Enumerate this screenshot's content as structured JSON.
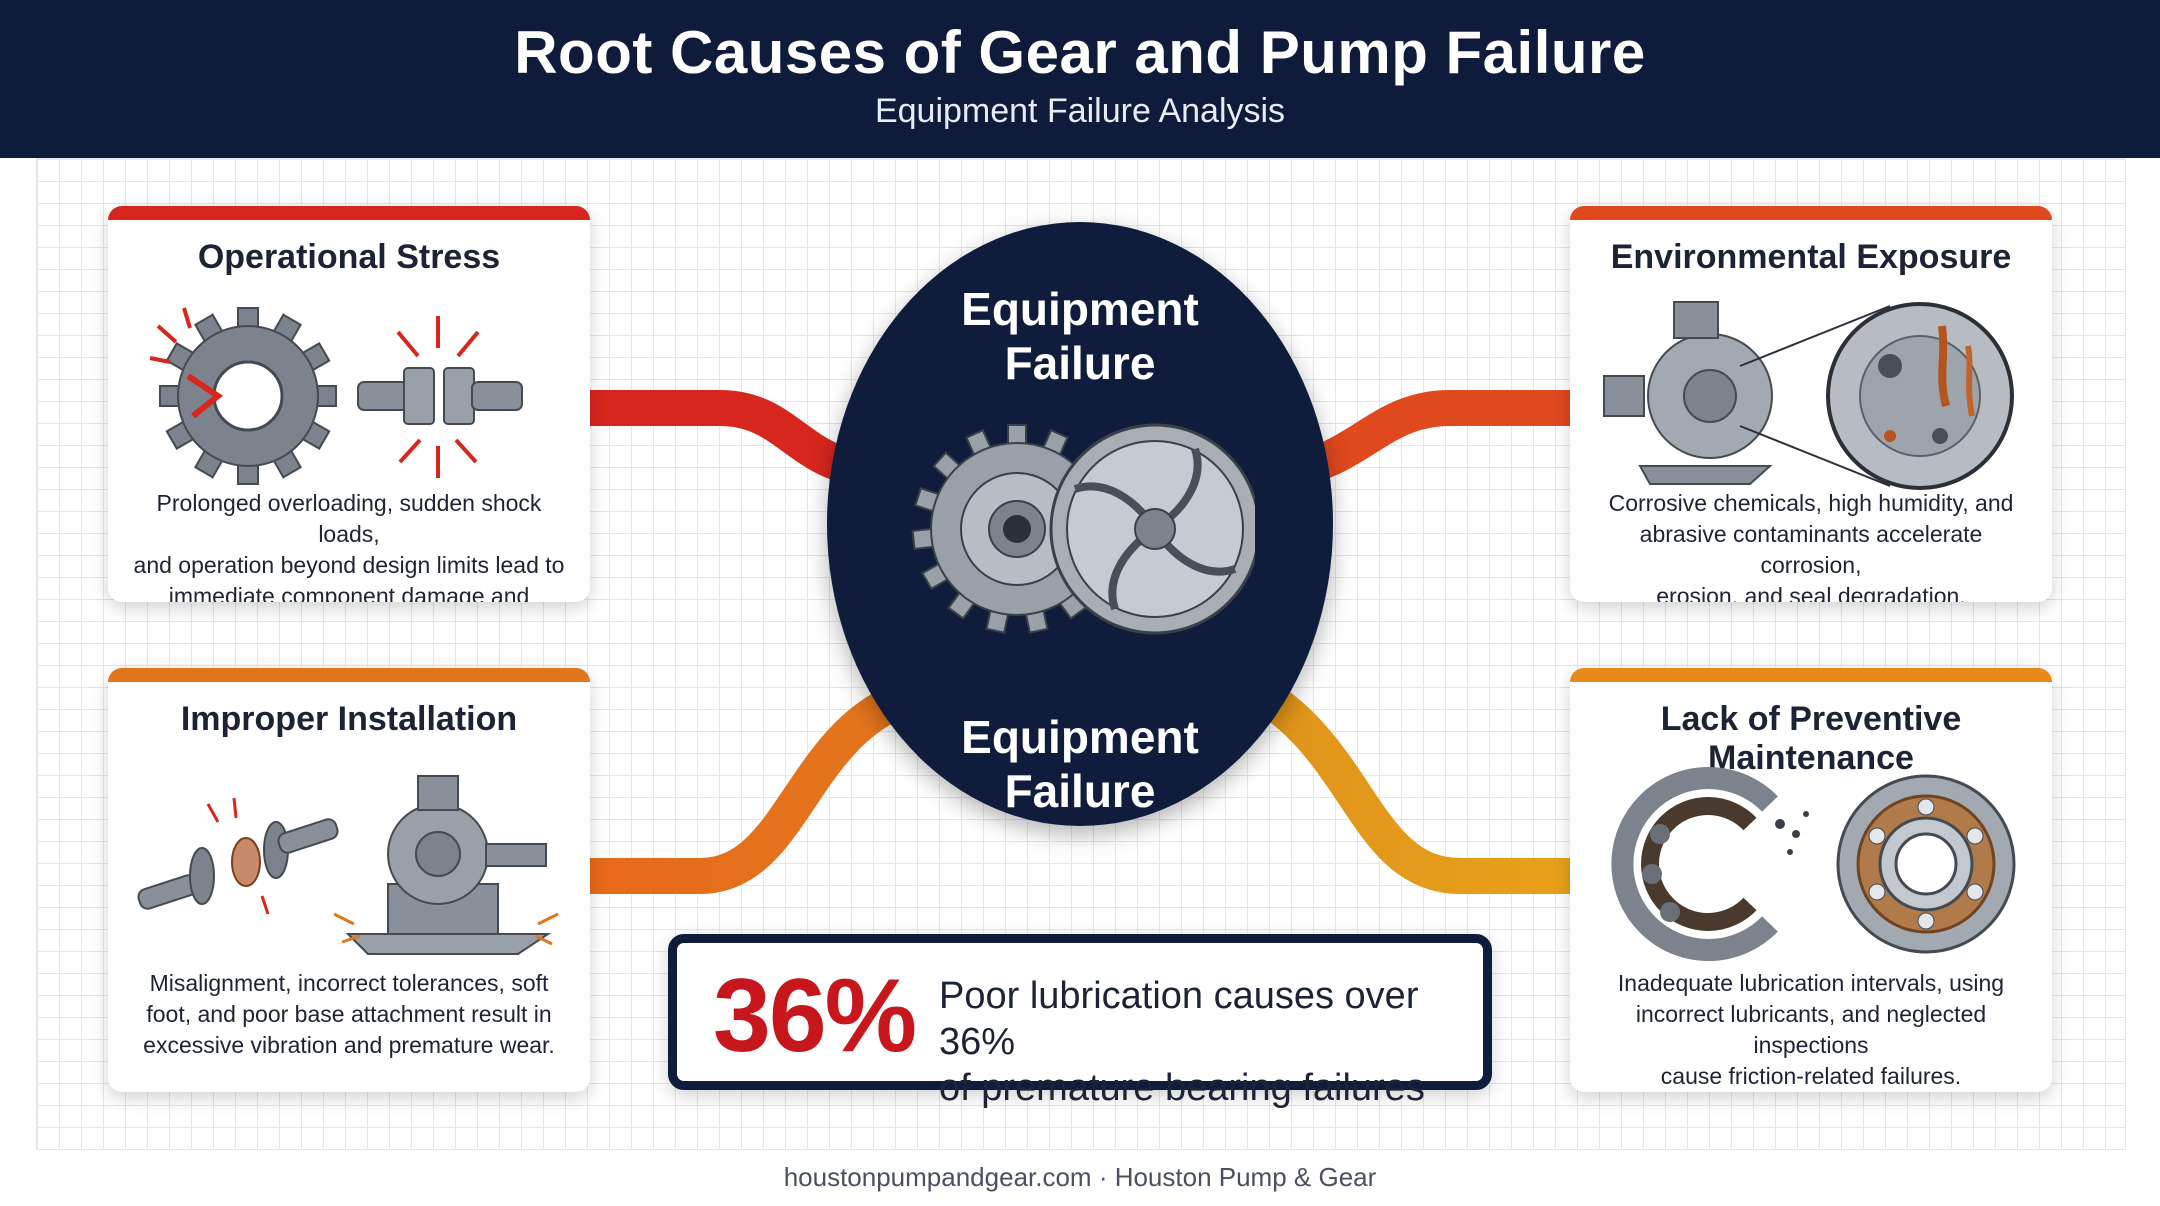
{
  "header": {
    "title": "Root Causes of Gear and Pump Failure",
    "subtitle": "Equipment Failure Analysis"
  },
  "hub": {
    "label_top": [
      "Equipment",
      "Failure"
    ],
    "label_bottom": [
      "Equipment",
      "Failure"
    ]
  },
  "cards": {
    "operational": {
      "title": "Operational Stress",
      "description": [
        "Prolonged overloading, sudden shock loads,",
        "and operation beyond design limits lead to",
        "immediate component damage and fracture."
      ],
      "accent": "#d7261e"
    },
    "installation": {
      "title": "Improper Installation",
      "description": [
        "Misalignment, incorrect tolerances, soft",
        "foot, and poor base attachment result in",
        "excessive vibration and premature wear."
      ],
      "accent": "#e2761c"
    },
    "environmental": {
      "title": "Environmental Exposure",
      "description": [
        "Corrosive chemicals, high humidity, and",
        "abrasive contaminants accelerate corrosion,",
        "erosion, and seal degradation."
      ],
      "accent": "#e0481e"
    },
    "maintenance": {
      "title": "Lack of Preventive Maintenance",
      "description": [
        "Inadequate lubrication intervals, using",
        "incorrect lubricants, and neglected inspections",
        "cause friction-related failures."
      ],
      "accent": "#e8891a"
    }
  },
  "stat": {
    "value": "36%",
    "text": [
      "Poor lubrication causes over 36%",
      "of premature bearing failures"
    ]
  },
  "footer": {
    "text": "houstonpumpandgear.com · Houston Pump & Gear"
  },
  "colors": {
    "navy": "#0f1b3a",
    "red": "#d7261e",
    "orange": "#e2761c",
    "amber": "#e8a01a",
    "stat_red": "#c8161d"
  }
}
